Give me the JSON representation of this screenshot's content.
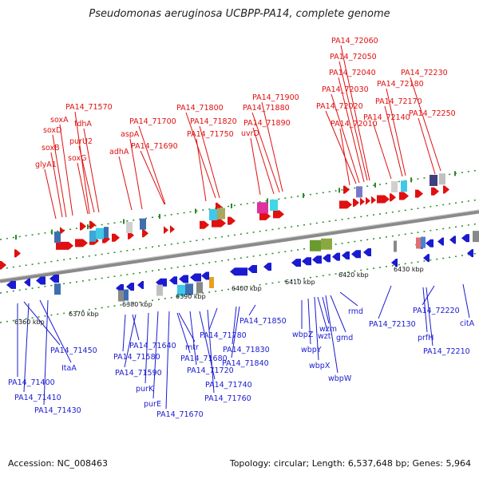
{
  "title": "Pseudomonas aeruginosa UCBPP-PA14, complete genome",
  "accession": "Accession: NC_008463",
  "stats": "Topology: circular; Length: 6,537,648 bp; Genes: 5,964",
  "colors": {
    "forward": "#e01010",
    "reverse": "#1a1ad0",
    "backbone": "#8a8a8a",
    "dots": "#2a8a2a"
  },
  "ticks": [
    "6360 kbp",
    "6370 kbp",
    "6380 kbp",
    "6390 kbp",
    "6400 kbp",
    "6410 kbp",
    "6420 kbp",
    "6430 kbp"
  ],
  "forward_labels": [
    "PA14_72060",
    "PA14_72050",
    "PA14_72040",
    "PA14_72230",
    "PA14_72180",
    "PA14_72030",
    "PA14_72170",
    "PA14_71900",
    "PA14_71570",
    "PA14_71800",
    "PA14_71880",
    "PA14_72020",
    "PA14_72250",
    "PA14_72140",
    "soxA",
    "PA14_71700",
    "PA14_71820",
    "PA14_71890",
    "PA14_72010",
    "fdhA",
    "soxD",
    "aspA",
    "PA14_71750",
    "uvrD",
    "purU2",
    "PA14_71690",
    "soxB",
    "adhA",
    "soxG",
    "glyA1"
  ],
  "reverse_labels": [
    "6360 kbp",
    "6370 kbp",
    "PA14_71450",
    "ItaA",
    "PA14_71400",
    "PA14_71410",
    "PA14_71430",
    "PA14_71640",
    "PA14_71580",
    "PA14_71590",
    "purK",
    "purE",
    "PA14_71670",
    "mtr",
    "PA14_71680",
    "PA14_71720",
    "PA14_71740",
    "PA14_71760",
    "PA14_71780",
    "PA14_71830",
    "PA14_71840",
    "PA14_71850",
    "wbpZ",
    "wbpY",
    "wzt",
    "wzm",
    "gmd",
    "wbpX",
    "wbpW",
    "rmd",
    "PA14_72130",
    "prfH",
    "PA14_72210",
    "PA14_72220",
    "citA"
  ]
}
